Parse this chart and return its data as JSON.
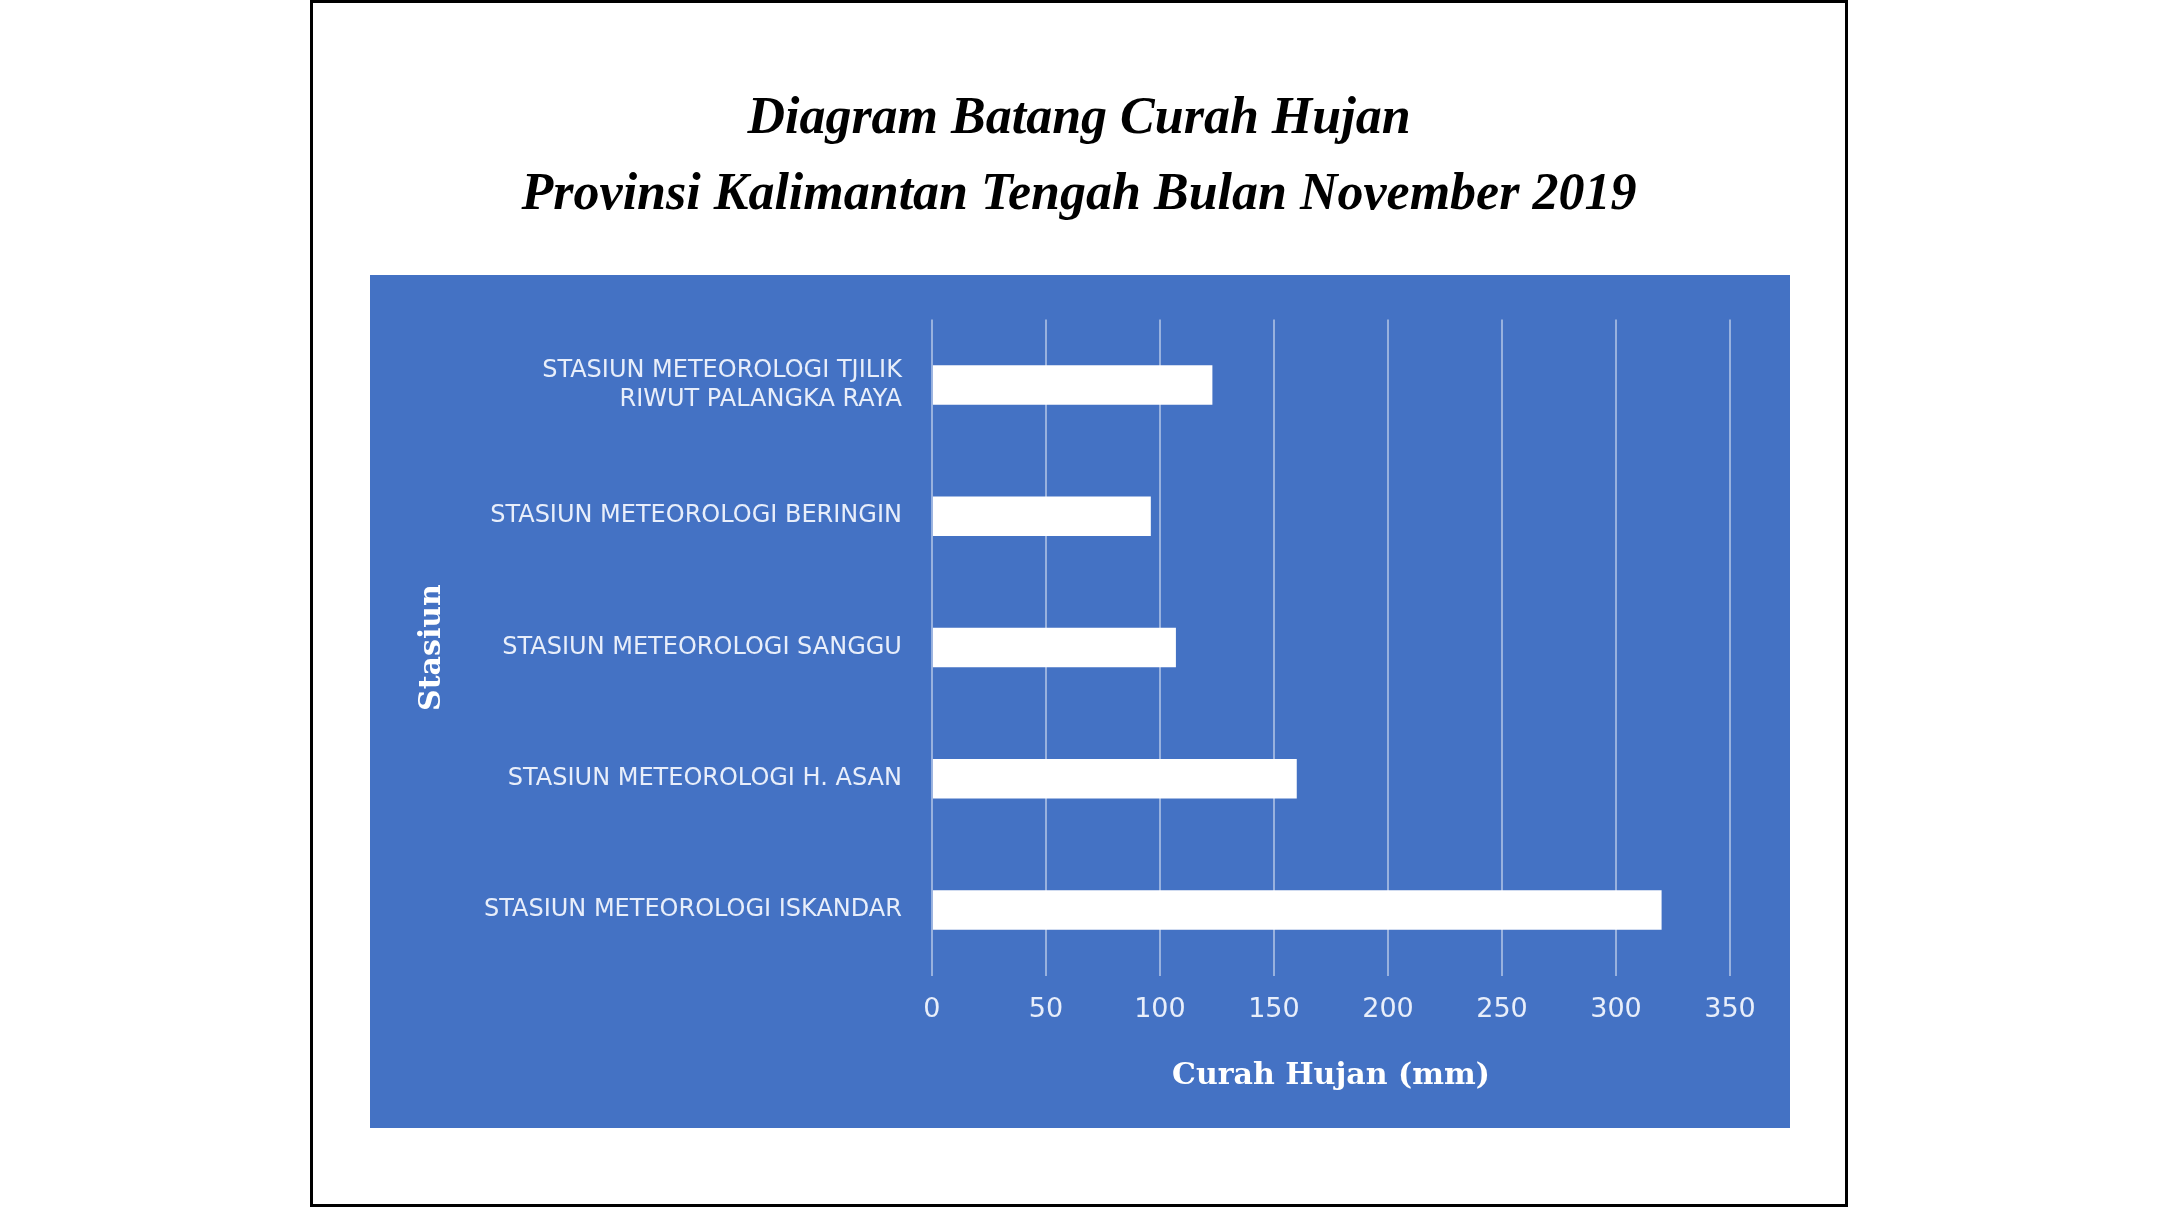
{
  "chart_data": {
    "type": "bar",
    "orientation": "horizontal",
    "title": "Diagram Batang Curah Hujan\nProvinsi Kalimantan Tengah Bulan November 2019",
    "categories": [
      "STASIUN METEOROLOGI TJILIK RIWUT PALANGKA RAYA",
      "STASIUN METEOROLOGI BERINGIN",
      "STASIUN METEOROLOGI SANGGU",
      "STASIUN METEOROLOGI H. ASAN",
      "STASIUN METEOROLOGI ISKANDAR"
    ],
    "values": [
      123,
      96,
      107,
      160,
      320
    ],
    "color": "#ffffff",
    "xlabel": "Curah Hujan (mm)",
    "ylabel": "Stasiun",
    "xlim": [
      0,
      350
    ],
    "xticks": [
      0,
      50,
      100,
      150,
      200,
      250,
      300,
      350
    ],
    "grid": "x",
    "legend": false
  }
}
